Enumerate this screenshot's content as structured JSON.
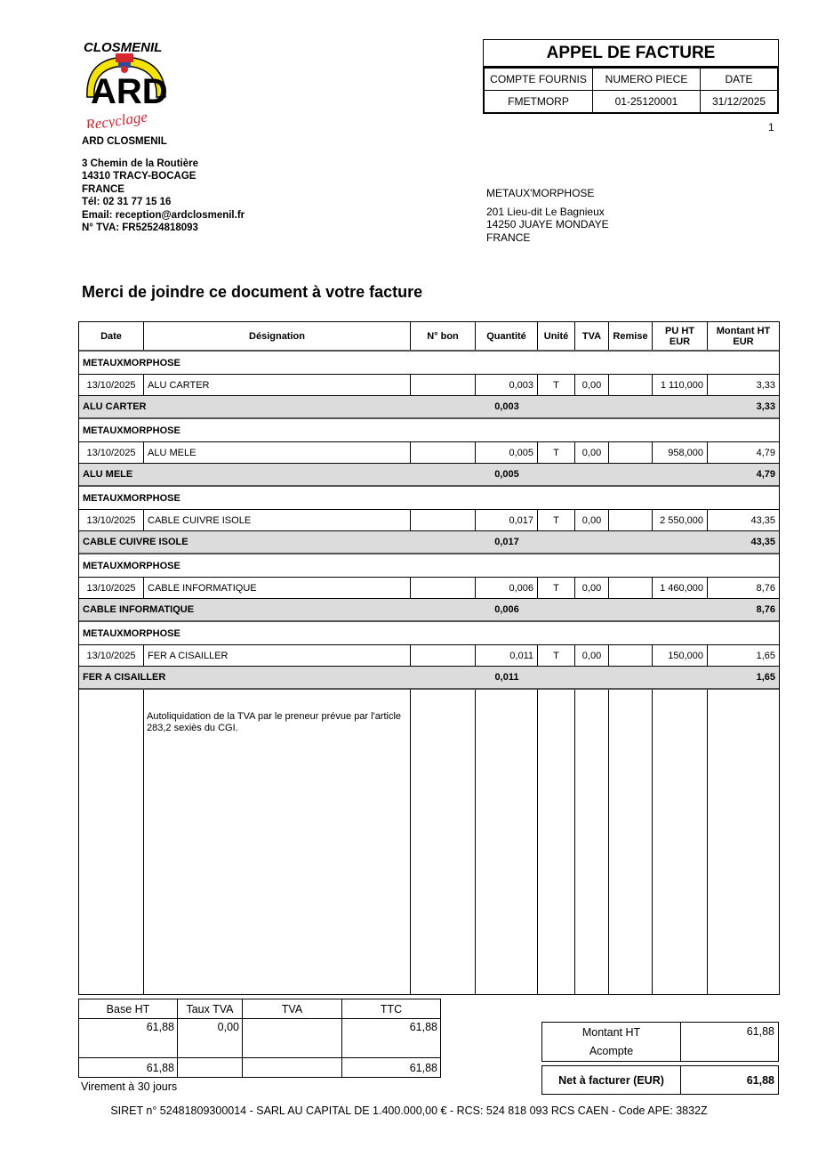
{
  "logo": {
    "top": "CLOSMENIL",
    "main": "ARD",
    "script": "Recyclage",
    "colors": {
      "yellow": "#f5e400",
      "red": "#d8262f",
      "blue": "#2a4ea0"
    }
  },
  "seller": {
    "name": "ARD CLOSMENIL",
    "address1": "3 Chemin de la Routière",
    "address2": "14310 TRACY-BOCAGE",
    "country": "FRANCE",
    "phone": "Tél: 02 31 77 15 16",
    "email": "Email: reception@ardclosmenil.fr",
    "vat": "N° TVA: FR52524818093"
  },
  "doc": {
    "title": "APPEL DE FACTURE",
    "headers": [
      "COMPTE FOURNIS",
      "NUMERO PIECE",
      "DATE"
    ],
    "values": [
      "FMETMORP",
      "01-25120001",
      "31/12/2025"
    ],
    "page": "1"
  },
  "buyer": {
    "name": "METAUX'MORPHOSE",
    "address1": "201 Lieu-dit Le Bagnieux",
    "address2": "14250 JUAYE MONDAYE",
    "country": "FRANCE"
  },
  "message": "Merci de joindre ce document à votre facture",
  "table": {
    "headers": [
      "Date",
      "Désignation",
      "N° bon",
      "Quantité",
      "Unité",
      "TVA",
      "Remise",
      "PU HT EUR",
      "Montant HT EUR"
    ],
    "groups": [
      {
        "supplier": "METAUXMORPHOSE",
        "date": "13/10/2025",
        "designation": "ALU CARTER",
        "bon": "",
        "qty": "0,003",
        "unit": "T",
        "tva": "0,00",
        "remise": "",
        "pu": "1 110,000",
        "montant": "3,33",
        "subtotal_label": "ALU CARTER",
        "subtotal_qty": "0,003",
        "subtotal_montant": "3,33"
      },
      {
        "supplier": "METAUXMORPHOSE",
        "date": "13/10/2025",
        "designation": "ALU MELE",
        "bon": "",
        "qty": "0,005",
        "unit": "T",
        "tva": "0,00",
        "remise": "",
        "pu": "958,000",
        "montant": "4,79",
        "subtotal_label": "ALU MELE",
        "subtotal_qty": "0,005",
        "subtotal_montant": "4,79"
      },
      {
        "supplier": "METAUXMORPHOSE",
        "date": "13/10/2025",
        "designation": "CABLE CUIVRE ISOLE",
        "bon": "",
        "qty": "0,017",
        "unit": "T",
        "tva": "0,00",
        "remise": "",
        "pu": "2 550,000",
        "montant": "43,35",
        "subtotal_label": "CABLE CUIVRE ISOLE",
        "subtotal_qty": "0,017",
        "subtotal_montant": "43,35"
      },
      {
        "supplier": "METAUXMORPHOSE",
        "date": "13/10/2025",
        "designation": "CABLE INFORMATIQUE",
        "bon": "",
        "qty": "0,006",
        "unit": "T",
        "tva": "0,00",
        "remise": "",
        "pu": "1 460,000",
        "montant": "8,76",
        "subtotal_label": "CABLE INFORMATIQUE",
        "subtotal_qty": "0,006",
        "subtotal_montant": "8,76"
      },
      {
        "supplier": "METAUXMORPHOSE",
        "date": "13/10/2025",
        "designation": "FER A CISAILLER",
        "bon": "",
        "qty": "0,011",
        "unit": "T",
        "tva": "0,00",
        "remise": "",
        "pu": "150,000",
        "montant": "1,65",
        "subtotal_label": "FER A CISAILLER",
        "subtotal_qty": "0,011",
        "subtotal_montant": "1,65"
      }
    ],
    "note": "Autoliquidation de la TVA par le preneur prévue par l'article 283,2 sexiès du CGI."
  },
  "vat_summary": {
    "headers": [
      "Base HT",
      "Taux TVA",
      "TVA",
      "TTC"
    ],
    "row": [
      "61,88",
      "0,00",
      "",
      "61,88"
    ],
    "total": [
      "61,88",
      "",
      "",
      "61,88"
    ]
  },
  "payment": "Virement  à 30 jours",
  "totals": {
    "montant_ht_label": "Montant HT",
    "montant_ht": "61,88",
    "acompte_label": "Acompte",
    "acompte": "",
    "net_label": "Net à facturer (EUR)",
    "net": "61,88"
  },
  "footer": "SIRET n° 52481809300014 - SARL AU CAPITAL DE 1.400.000,00 € - RCS: 524 818 093 RCS CAEN - Code APE: 3832Z"
}
